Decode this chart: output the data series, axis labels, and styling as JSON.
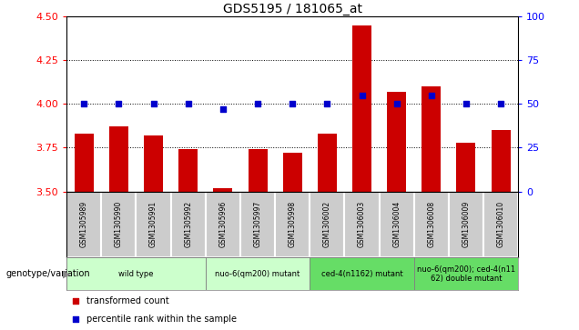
{
  "title": "GDS5195 / 181065_at",
  "samples": [
    "GSM1305989",
    "GSM1305990",
    "GSM1305991",
    "GSM1305992",
    "GSM1305996",
    "GSM1305997",
    "GSM1305998",
    "GSM1306002",
    "GSM1306003",
    "GSM1306004",
    "GSM1306008",
    "GSM1306009",
    "GSM1306010"
  ],
  "transformed_count": [
    3.83,
    3.87,
    3.82,
    3.74,
    3.52,
    3.74,
    3.72,
    3.83,
    4.45,
    4.07,
    4.1,
    3.78,
    3.85
  ],
  "percentile_rank": [
    50,
    50,
    50,
    50,
    47,
    50,
    50,
    50,
    55,
    50,
    55,
    50,
    50
  ],
  "ylim_left": [
    3.5,
    4.5
  ],
  "ylim_right": [
    0,
    100
  ],
  "yticks_left": [
    3.5,
    3.75,
    4.0,
    4.25,
    4.5
  ],
  "yticks_right": [
    0,
    25,
    50,
    75,
    100
  ],
  "groups": [
    {
      "label": "wild type",
      "indices": [
        0,
        1,
        2,
        3
      ],
      "color": "#ccffcc"
    },
    {
      "label": "nuo-6(qm200) mutant",
      "indices": [
        4,
        5,
        6
      ],
      "color": "#ccffcc"
    },
    {
      "label": "ced-4(n1162) mutant",
      "indices": [
        7,
        8,
        9
      ],
      "color": "#66dd66"
    },
    {
      "label": "nuo-6(qm200); ced-4(n11\n62) double mutant",
      "indices": [
        10,
        11,
        12
      ],
      "color": "#66dd66"
    }
  ],
  "bar_color": "#cc0000",
  "dot_color": "#0000cc",
  "label_left": "genotype/variation",
  "legend_transformed": "transformed count",
  "legend_percentile": "percentile rank within the sample",
  "bg_color_samples": "#cccccc"
}
